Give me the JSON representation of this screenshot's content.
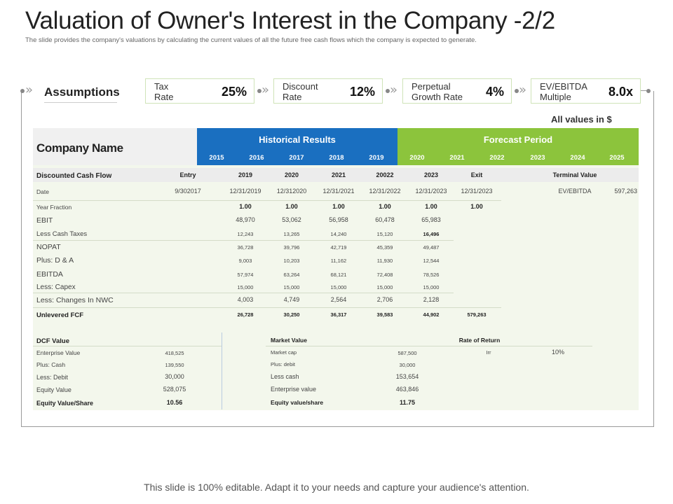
{
  "title": "Valuation of Owner's Interest in the Company -2/2",
  "subtitle": "The slide provides the company's valuations by calculating the current values of all the future free cash flows which the company is expected to generate.",
  "assumptions": {
    "label": "Assumptions",
    "items": [
      {
        "label": "Tax\nRate",
        "value": "25%"
      },
      {
        "label": "Discount\nRate",
        "value": "12%"
      },
      {
        "label": "Perpetual\nGrowth Rate",
        "value": "4%"
      },
      {
        "label": "EV/EBITDA\nMultiple",
        "value": "8.0x"
      }
    ],
    "chevron": "»"
  },
  "all_values": "All  values in $",
  "table": {
    "company_name": "Company Name",
    "historical_title": "Historical Results",
    "forecast_title": "Forecast Period",
    "historical_years": [
      "2015",
      "2016",
      "2017",
      "2018",
      "2019"
    ],
    "forecast_years": [
      "2020",
      "2021",
      "2022",
      "2023",
      "2024",
      "2025"
    ],
    "dcf_header": {
      "label": "Discounted Cash Flow",
      "cols": [
        "Entry",
        "2019",
        "2020",
        "2021",
        "20022",
        "2023",
        "Exit"
      ],
      "terminal": "Terminal Value"
    },
    "date_row": {
      "label": "Date",
      "values": [
        "9/302017",
        "12/31/2019",
        "12/312020",
        "12/31/2021",
        "12/31/2022",
        "12/31/2023",
        "12/31/2023"
      ],
      "ev_label": "EV/EBITDA",
      "ev_value": "597,263"
    },
    "year_fraction": {
      "label": "Year Fraction",
      "values": [
        "1.00",
        "1.00",
        "1.00",
        "1.00",
        "1.00",
        "1.00"
      ]
    },
    "rows": [
      {
        "label": "EBIT",
        "values": [
          "48,970",
          "53,062",
          "56,958",
          "60,478",
          "65,983"
        ]
      },
      {
        "label": "Less  Cash Taxes",
        "values": [
          "12,243",
          "13,265",
          "14,240",
          "15,120",
          "16,496"
        ]
      },
      {
        "label": "NOPAT",
        "values": [
          "36,728",
          "39,796",
          "42,719",
          "45,359",
          "49,487"
        ]
      },
      {
        "label": "Plus:  D & A",
        "values": [
          "9,003",
          "10,203",
          "11,162",
          "11,930",
          "12,544"
        ]
      },
      {
        "label": "EBITDA",
        "values": [
          "57,974",
          "63,264",
          "68,121",
          "72,408",
          "78,526"
        ]
      },
      {
        "label": "Less:  Capex",
        "values": [
          "15,000",
          "15,000",
          "15,000",
          "15,000",
          "15,000"
        ]
      },
      {
        "label": "Less:  Changes In NWC",
        "values": [
          "4,003",
          "4,749",
          "2,564",
          "2,706",
          "2,128"
        ]
      }
    ],
    "unlevered": {
      "label": "Unlevered FCF",
      "values": [
        "26,728",
        "30,250",
        "36,317",
        "39,583",
        "44,902",
        "579,263"
      ]
    }
  },
  "dcf_value": {
    "title": "DCF Value",
    "rows": [
      {
        "label": "Enterprise Value",
        "value": "418,525"
      },
      {
        "label": "Plus:  Cash",
        "value": "139,550"
      },
      {
        "label": "Less:  Debit",
        "value": "30,000"
      },
      {
        "label": "Equity  Value",
        "value": "528,075"
      },
      {
        "label": "Equity  Value/Share",
        "value": "10.56"
      }
    ]
  },
  "market_value": {
    "title": "Market Value",
    "rows": [
      {
        "label": "Market  cap",
        "value": "587,500"
      },
      {
        "label": "Plus:  debit",
        "value": "30,000"
      },
      {
        "label": "Less cash",
        "value": "153,654"
      },
      {
        "label": "Enterprise value",
        "value": "463,846"
      },
      {
        "label": "Equity value/share",
        "value": "11.75"
      }
    ]
  },
  "rate_of_return": {
    "title": "Rate of Return",
    "label": "Irr",
    "value": "10%"
  },
  "footer": "This slide is 100% editable. Adapt it to your needs and capture your audience's attention.",
  "colors": {
    "historical": "#1a6fc0",
    "forecast": "#8cc43c",
    "panel": "#f3f7ec"
  }
}
